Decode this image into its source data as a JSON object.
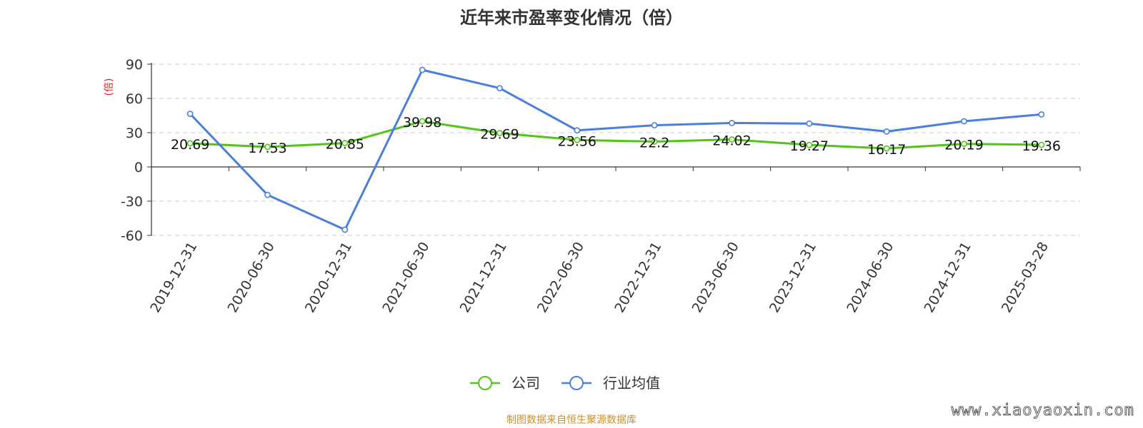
{
  "chart_data": {
    "type": "line",
    "title": "近年来市盈率变化情况（倍）",
    "ylabel": "(倍)",
    "xlabel": "",
    "ylim": [
      -60,
      90
    ],
    "yticks": [
      90,
      60,
      30,
      0,
      -30,
      -60
    ],
    "ytick_labels": [
      "90",
      "60",
      "30",
      "0",
      "-30",
      "-60"
    ],
    "grid": true,
    "legend_position": "bottom-center",
    "categories": [
      "2019-12-31",
      "2020-06-30",
      "2020-12-31",
      "2021-06-30",
      "2021-12-31",
      "2022-06-30",
      "2022-12-31",
      "2023-06-30",
      "2023-12-31",
      "2024-06-30",
      "2024-12-31",
      "2025-03-28"
    ],
    "series": [
      {
        "name": "公司",
        "color": "#52c41a",
        "values": [
          20.69,
          17.53,
          20.85,
          39.98,
          29.69,
          23.56,
          22.2,
          24.02,
          19.27,
          16.17,
          20.19,
          19.36
        ],
        "labels": [
          "20.69",
          "17.53",
          "20.85",
          "39.98",
          "29.69",
          "23.56",
          "22.2",
          "24.02",
          "19.27",
          "16.17",
          "20.19",
          "19.36"
        ]
      },
      {
        "name": "行业均值",
        "color": "#4a7fdc",
        "values": [
          46.5,
          -24.5,
          -55,
          85,
          69,
          32,
          36.5,
          38.5,
          38,
          31,
          40,
          46
        ]
      }
    ]
  },
  "footer": {
    "source": "制图数据来自恒生聚源数据库",
    "source_color": "#c8902e",
    "watermark": "www.xiaoyaoxin.com"
  },
  "colors": {
    "axis": "#333333",
    "grid": "#cccccc",
    "ylabel": "#e02020"
  }
}
